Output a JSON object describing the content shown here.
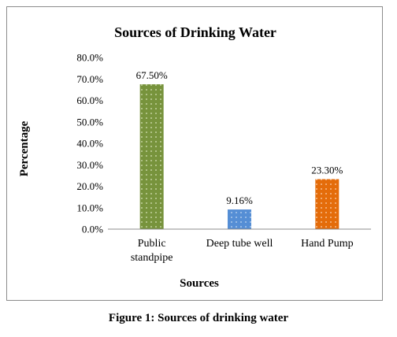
{
  "chart_data": {
    "type": "bar",
    "title": "Sources of Drinking Water",
    "xlabel": "Sources",
    "ylabel": "Percentage",
    "categories": [
      "Public standpipe",
      "Deep tube well",
      "Hand Pump"
    ],
    "category_lines": [
      [
        "Public",
        "standpipe"
      ],
      [
        "Deep tube well"
      ],
      [
        "Hand Pump"
      ]
    ],
    "values": [
      67.5,
      9.16,
      23.3
    ],
    "data_labels": [
      "67.50%",
      "9.16%",
      "23.30%"
    ],
    "bar_colors": [
      "#77933c",
      "#558ed5",
      "#e46c0a"
    ],
    "ylim": [
      0,
      80
    ],
    "yticks": [
      0,
      10,
      20,
      30,
      40,
      50,
      60,
      70,
      80
    ],
    "ytick_labels": [
      "0.0%",
      "10.0%",
      "20.0%",
      "30.0%",
      "40.0%",
      "50.0%",
      "60.0%",
      "70.0%",
      "80.0%"
    ],
    "grid": false,
    "legend": "none"
  },
  "caption": "Figure 1: Sources of drinking water"
}
